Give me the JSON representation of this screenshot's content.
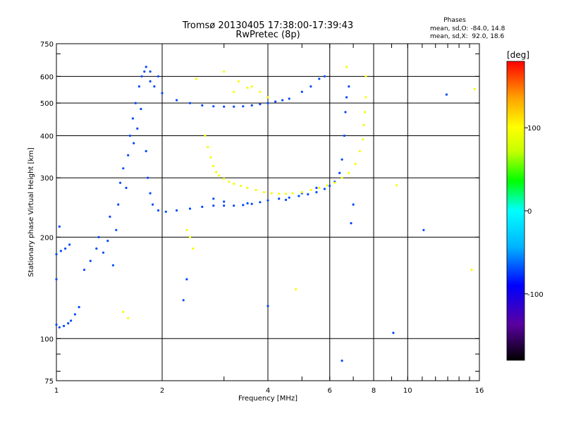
{
  "chart_data": {
    "type": "scatter",
    "title": "Tromsø 20130405 17:38:00-17:39:43",
    "subtitle": "RwPretec (8p)",
    "xlabel": "Frequency [MHz]",
    "ylabel": "Stationary phase Virtual Height [km]",
    "x_scale": "log",
    "y_scale": "log",
    "xlim": [
      1,
      16
    ],
    "ylim": [
      75,
      750
    ],
    "grid": true,
    "x_ticks": [
      1,
      2,
      4,
      6,
      8,
      10,
      16
    ],
    "x_tick_labels": [
      "1",
      "2",
      "4",
      "6",
      "8",
      "10",
      "16"
    ],
    "y_ticks": [
      75,
      100,
      200,
      300,
      400,
      500,
      600,
      750
    ],
    "y_tick_labels": [
      "75",
      "100",
      "200",
      "300",
      "400",
      "500",
      "600",
      "750"
    ],
    "phases_box": {
      "title": "Phases",
      "line1": "mean, sd,O: -84.0, 14.8",
      "line2": "mean, sd,X:  92.0, 18.6"
    },
    "colorbar": {
      "label": "[deg]",
      "range": [
        -180,
        180
      ],
      "ticks": [
        100,
        0,
        -100
      ],
      "tick_labels": [
        "100",
        "0",
        "-100"
      ],
      "stops": [
        "#000000",
        "#5a00a0",
        "#0000ff",
        "#00b4ff",
        "#00ffff",
        "#00ff00",
        "#c8ff00",
        "#ffff00",
        "#ffa000",
        "#ff0000"
      ]
    },
    "series": [
      {
        "name": "O",
        "phase": -84,
        "points": [
          [
            1.0,
            110
          ],
          [
            1.02,
            108
          ],
          [
            1.05,
            109
          ],
          [
            1.08,
            111
          ],
          [
            1.1,
            113
          ],
          [
            1.13,
            118
          ],
          [
            1.16,
            124
          ],
          [
            1.0,
            178
          ],
          [
            1.03,
            182
          ],
          [
            1.06,
            185
          ],
          [
            1.09,
            190
          ],
          [
            1.02,
            215
          ],
          [
            1.0,
            150
          ],
          [
            1.2,
            160
          ],
          [
            1.25,
            170
          ],
          [
            1.3,
            185
          ],
          [
            1.32,
            200
          ],
          [
            1.36,
            180
          ],
          [
            1.4,
            195
          ],
          [
            1.42,
            230
          ],
          [
            1.45,
            165
          ],
          [
            1.48,
            210
          ],
          [
            1.5,
            250
          ],
          [
            1.52,
            290
          ],
          [
            1.55,
            320
          ],
          [
            1.58,
            280
          ],
          [
            1.6,
            350
          ],
          [
            1.62,
            400
          ],
          [
            1.65,
            450
          ],
          [
            1.66,
            380
          ],
          [
            1.68,
            500
          ],
          [
            1.7,
            420
          ],
          [
            1.72,
            560
          ],
          [
            1.74,
            480
          ],
          [
            1.75,
            600
          ],
          [
            1.78,
            620
          ],
          [
            1.8,
            360
          ],
          [
            1.82,
            300
          ],
          [
            1.85,
            270
          ],
          [
            1.88,
            250
          ],
          [
            1.95,
            240
          ],
          [
            2.05,
            238
          ],
          [
            2.2,
            240
          ],
          [
            2.4,
            243
          ],
          [
            2.6,
            246
          ],
          [
            2.8,
            248
          ],
          [
            3.0,
            248
          ],
          [
            3.2,
            248
          ],
          [
            3.4,
            249
          ],
          [
            3.6,
            251
          ],
          [
            3.8,
            254
          ],
          [
            4.0,
            257
          ],
          [
            4.3,
            260
          ],
          [
            4.6,
            262
          ],
          [
            4.9,
            265
          ],
          [
            5.2,
            268
          ],
          [
            5.5,
            272
          ],
          [
            5.8,
            278
          ],
          [
            6.0,
            284
          ],
          [
            6.2,
            292
          ],
          [
            6.4,
            310
          ],
          [
            6.5,
            340
          ],
          [
            6.6,
            400
          ],
          [
            6.65,
            470
          ],
          [
            6.7,
            520
          ],
          [
            6.8,
            560
          ],
          [
            1.85,
            580
          ],
          [
            1.9,
            560
          ],
          [
            2.0,
            535
          ],
          [
            2.2,
            510
          ],
          [
            2.4,
            500
          ],
          [
            2.6,
            492
          ],
          [
            2.8,
            489
          ],
          [
            3.0,
            488
          ],
          [
            3.2,
            488
          ],
          [
            3.4,
            489
          ],
          [
            3.6,
            492
          ],
          [
            3.8,
            496
          ],
          [
            4.0,
            500
          ],
          [
            4.2,
            505
          ],
          [
            4.4,
            510
          ],
          [
            4.6,
            515
          ],
          [
            1.8,
            640
          ],
          [
            1.85,
            620
          ],
          [
            1.95,
            600
          ],
          [
            5.0,
            540
          ],
          [
            5.3,
            560
          ],
          [
            5.6,
            590
          ],
          [
            5.8,
            600
          ],
          [
            6.9,
            220
          ],
          [
            7.0,
            250
          ],
          [
            2.8,
            260
          ],
          [
            3.0,
            255
          ],
          [
            3.5,
            252
          ],
          [
            4.5,
            258
          ],
          [
            5.0,
            270
          ],
          [
            5.5,
            280
          ],
          [
            12.9,
            530
          ],
          [
            9.1,
            104
          ],
          [
            11.1,
            210
          ],
          [
            6.5,
            86
          ],
          [
            4.0,
            125
          ],
          [
            2.3,
            130
          ],
          [
            2.35,
            150
          ]
        ]
      },
      {
        "name": "X",
        "phase": 92,
        "points": [
          [
            2.65,
            400
          ],
          [
            2.7,
            370
          ],
          [
            2.75,
            345
          ],
          [
            2.8,
            325
          ],
          [
            2.85,
            312
          ],
          [
            2.9,
            305
          ],
          [
            3.0,
            298
          ],
          [
            3.1,
            292
          ],
          [
            3.2,
            288
          ],
          [
            3.35,
            284
          ],
          [
            3.5,
            280
          ],
          [
            3.7,
            276
          ],
          [
            3.9,
            272
          ],
          [
            4.1,
            270
          ],
          [
            4.3,
            269
          ],
          [
            4.5,
            269
          ],
          [
            4.7,
            270
          ],
          [
            5.0,
            272
          ],
          [
            5.3,
            276
          ],
          [
            5.6,
            280
          ],
          [
            5.9,
            285
          ],
          [
            6.2,
            290
          ],
          [
            6.5,
            300
          ],
          [
            6.8,
            310
          ],
          [
            7.1,
            330
          ],
          [
            7.3,
            360
          ],
          [
            7.45,
            390
          ],
          [
            7.5,
            430
          ],
          [
            7.55,
            470
          ],
          [
            7.6,
            520
          ],
          [
            7.6,
            600
          ],
          [
            2.5,
            590
          ],
          [
            3.0,
            620
          ],
          [
            3.3,
            580
          ],
          [
            3.6,
            560
          ],
          [
            3.8,
            540
          ],
          [
            4.0,
            520
          ],
          [
            3.2,
            540
          ],
          [
            3.5,
            555
          ],
          [
            2.4,
            200
          ],
          [
            2.45,
            185
          ],
          [
            2.35,
            210
          ],
          [
            1.55,
            120
          ],
          [
            1.6,
            115
          ],
          [
            4.8,
            140
          ],
          [
            9.3,
            285
          ],
          [
            15.2,
            160
          ],
          [
            15.5,
            550
          ],
          [
            6.7,
            640
          ]
        ]
      }
    ]
  }
}
